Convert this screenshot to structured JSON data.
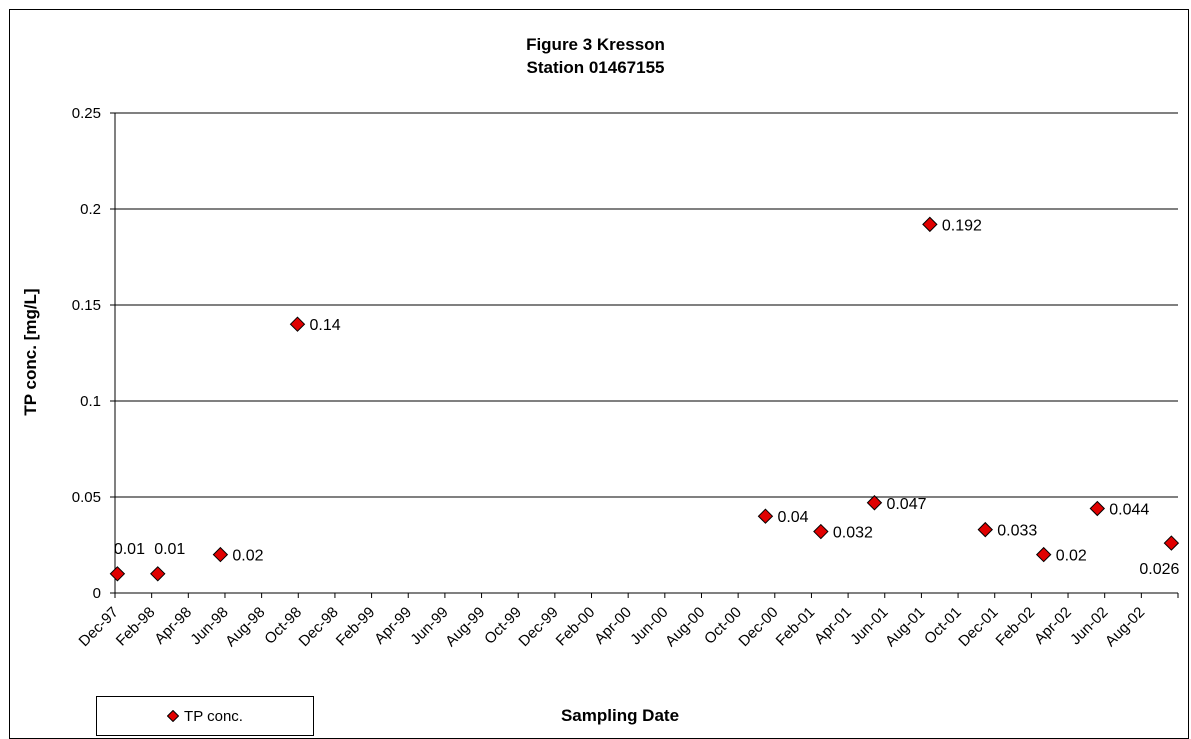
{
  "chart_data": {
    "type": "scatter",
    "title": [
      "Figure 3 Kresson",
      "Station 01467155"
    ],
    "xlabel": "Sampling Date",
    "ylabel": "TP conc. [mg/L]",
    "ylim": [
      0,
      0.25
    ],
    "yticks": [
      "0",
      "0.05",
      "0.1",
      "0.15",
      "0.2",
      "0.25"
    ],
    "xrange": [
      "1997-12-01",
      "2002-10-01"
    ],
    "xticks": [
      "Dec-97",
      "Feb-98",
      "Apr-98",
      "Jun-98",
      "Aug-98",
      "Oct-98",
      "Dec-98",
      "Feb-99",
      "Apr-99",
      "Jun-99",
      "Aug-99",
      "Oct-99",
      "Dec-99",
      "Feb-00",
      "Apr-00",
      "Jun-00",
      "Aug-00",
      "Oct-00",
      "Dec-00",
      "Feb-01",
      "Apr-01",
      "Jun-01",
      "Aug-01",
      "Oct-01",
      "Dec-01",
      "Feb-02",
      "Apr-02",
      "Jun-02",
      "Aug-02"
    ],
    "grid": "horizontal",
    "legend_position": "bottom-left",
    "series": [
      {
        "name": "TP conc.",
        "color": "#e00000",
        "marker": "diamond",
        "points": [
          {
            "x": "1997-12-05",
            "y": 0.01,
            "label": "0.01"
          },
          {
            "x": "1998-02-10",
            "y": 0.01,
            "label": "0.01"
          },
          {
            "x": "1998-05-25",
            "y": 0.02,
            "label": "0.02"
          },
          {
            "x": "1998-09-30",
            "y": 0.14,
            "label": "0.14"
          },
          {
            "x": "2000-11-15",
            "y": 0.04,
            "label": "0.04"
          },
          {
            "x": "2001-02-15",
            "y": 0.032,
            "label": "0.032"
          },
          {
            "x": "2001-05-15",
            "y": 0.047,
            "label": "0.047"
          },
          {
            "x": "2001-08-15",
            "y": 0.192,
            "label": "0.192"
          },
          {
            "x": "2001-11-15",
            "y": 0.033,
            "label": "0.033"
          },
          {
            "x": "2002-02-20",
            "y": 0.02,
            "label": "0.02"
          },
          {
            "x": "2002-05-20",
            "y": 0.044,
            "label": "0.044"
          },
          {
            "x": "2002-09-20",
            "y": 0.026,
            "label": "0.026"
          }
        ]
      }
    ]
  }
}
